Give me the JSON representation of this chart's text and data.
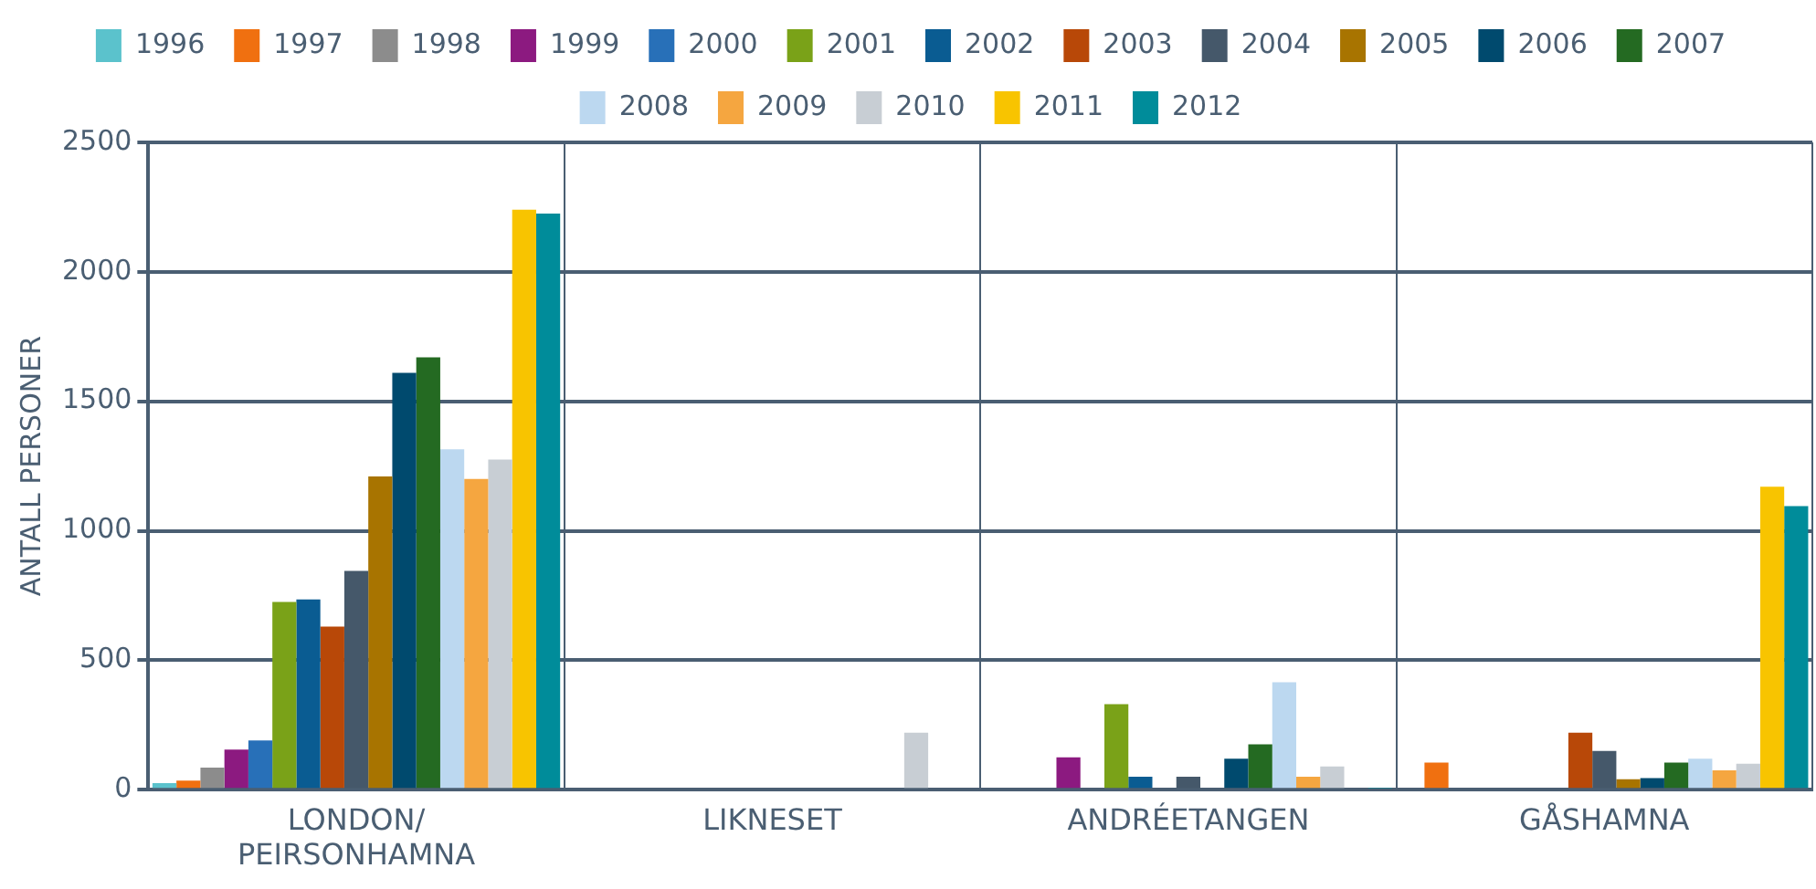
{
  "chart_data": {
    "type": "bar",
    "ylabel": "ANTALL PERSONER",
    "categories": [
      "LONDON/ PEIRSONHAMNA",
      "LIKNESET",
      "ANDRÉETANGEN",
      "GÅSHAMNA"
    ],
    "series": [
      {
        "name": "1996",
        "color": "#5bc2cc",
        "values": [
          25,
          0,
          0,
          0
        ]
      },
      {
        "name": "1997",
        "color": "#f07010",
        "values": [
          35,
          0,
          0,
          105
        ]
      },
      {
        "name": "1998",
        "color": "#8c8c8c",
        "values": [
          85,
          0,
          0,
          0
        ]
      },
      {
        "name": "1999",
        "color": "#8c1a80",
        "values": [
          155,
          0,
          125,
          0
        ]
      },
      {
        "name": "2000",
        "color": "#2870b8",
        "values": [
          190,
          0,
          0,
          0
        ]
      },
      {
        "name": "2001",
        "color": "#7aa218",
        "values": [
          725,
          0,
          330,
          0
        ]
      },
      {
        "name": "2002",
        "color": "#0a5c92",
        "values": [
          735,
          0,
          50,
          0
        ]
      },
      {
        "name": "2003",
        "color": "#b84808",
        "values": [
          630,
          0,
          0,
          220
        ]
      },
      {
        "name": "2004",
        "color": "#45586a",
        "values": [
          845,
          0,
          50,
          150
        ]
      },
      {
        "name": "2005",
        "color": "#a87400",
        "values": [
          1210,
          0,
          0,
          40
        ]
      },
      {
        "name": "2006",
        "color": "#004a6e",
        "values": [
          1610,
          0,
          120,
          45
        ]
      },
      {
        "name": "2007",
        "color": "#246a22",
        "values": [
          1670,
          0,
          175,
          105
        ]
      },
      {
        "name": "2008",
        "color": "#bcd8f0",
        "values": [
          1315,
          0,
          415,
          120
        ]
      },
      {
        "name": "2009",
        "color": "#f5a640",
        "values": [
          1200,
          0,
          50,
          75
        ]
      },
      {
        "name": "2010",
        "color": "#c8ced4",
        "values": [
          1275,
          220,
          90,
          100
        ]
      },
      {
        "name": "2011",
        "color": "#f8c400",
        "values": [
          2240,
          0,
          0,
          1170
        ]
      },
      {
        "name": "2012",
        "color": "#008c9a",
        "values": [
          2225,
          0,
          5,
          1095
        ]
      }
    ],
    "ylim": [
      0,
      2500
    ],
    "yticks": [
      0,
      500,
      1000,
      1500,
      2000,
      2500
    ],
    "grid": true,
    "legend": "top"
  }
}
